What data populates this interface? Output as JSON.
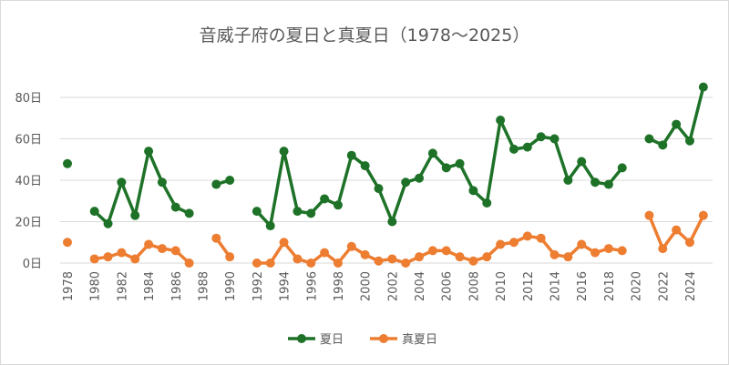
{
  "chart_data": {
    "type": "line",
    "title": "音威子府の夏日と真夏日（1978～2025）",
    "x": [
      1978,
      1979,
      1980,
      1981,
      1982,
      1983,
      1984,
      1985,
      1986,
      1987,
      1988,
      1989,
      1990,
      1991,
      1992,
      1993,
      1994,
      1995,
      1996,
      1997,
      1998,
      1999,
      2000,
      2001,
      2002,
      2003,
      2004,
      2005,
      2006,
      2007,
      2008,
      2009,
      2010,
      2011,
      2012,
      2013,
      2014,
      2015,
      2016,
      2017,
      2018,
      2019,
      2020,
      2021,
      2022,
      2023,
      2024,
      2025
    ],
    "x_tick_labels": [
      "1978",
      "1980",
      "1982",
      "1984",
      "1986",
      "1988",
      "1990",
      "1992",
      "1994",
      "1996",
      "1998",
      "2000",
      "2002",
      "2004",
      "2006",
      "2008",
      "2010",
      "2012",
      "2014",
      "2016",
      "2018",
      "2020",
      "2022",
      "2024"
    ],
    "y_tick_labels": [
      "0日",
      "20日",
      "40日",
      "60日",
      "80日"
    ],
    "ylim": [
      0,
      90
    ],
    "grid": true,
    "legend_position": "bottom",
    "series": [
      {
        "name": "夏日",
        "color": "#1e7228",
        "values": [
          48,
          null,
          25,
          19,
          39,
          23,
          54,
          39,
          27,
          24,
          null,
          38,
          40,
          null,
          25,
          18,
          54,
          25,
          24,
          31,
          28,
          52,
          47,
          36,
          20,
          39,
          41,
          53,
          46,
          48,
          35,
          29,
          69,
          55,
          56,
          61,
          60,
          40,
          49,
          39,
          38,
          46,
          null,
          60,
          57,
          67,
          59,
          85
        ]
      },
      {
        "name": "真夏日",
        "color": "#ed7d31",
        "values": [
          10,
          null,
          2,
          3,
          5,
          2,
          9,
          7,
          6,
          0,
          null,
          12,
          3,
          null,
          0,
          0,
          10,
          2,
          0,
          5,
          0,
          8,
          4,
          1,
          2,
          0,
          3,
          6,
          6,
          3,
          1,
          3,
          9,
          10,
          13,
          12,
          4,
          3,
          9,
          5,
          7,
          6,
          null,
          23,
          7,
          16,
          10,
          23
        ]
      }
    ]
  }
}
